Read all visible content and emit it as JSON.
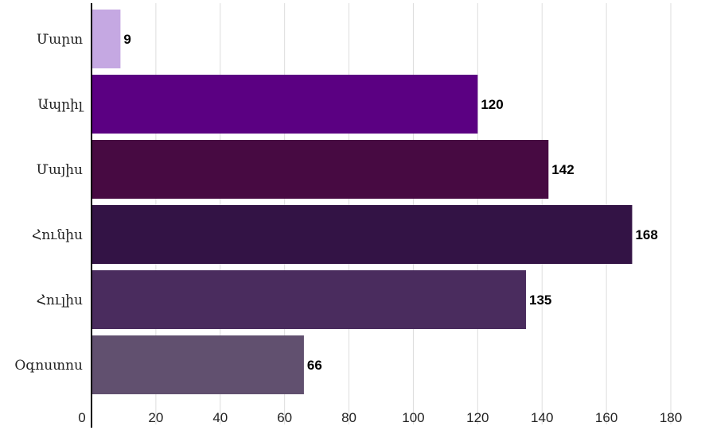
{
  "chart_data": {
    "type": "bar",
    "orientation": "horizontal",
    "categories": [
      "Մարտ",
      "Ապրիլ",
      "Մայիս",
      "Հունիս",
      "Հուլիս",
      "Օգոստոս"
    ],
    "values": [
      9,
      120,
      142,
      168,
      135,
      66
    ],
    "colors": [
      "#c5a8e2",
      "#5b0082",
      "#470a42",
      "#331345",
      "#4a2c5e",
      "#61506f"
    ],
    "xticks": [
      0,
      20,
      40,
      60,
      80,
      100,
      120,
      140,
      160,
      180
    ],
    "xlim": [
      0,
      180
    ],
    "grid": "vertical",
    "legend": "none",
    "title": "",
    "xlabel": "",
    "ylabel": ""
  }
}
